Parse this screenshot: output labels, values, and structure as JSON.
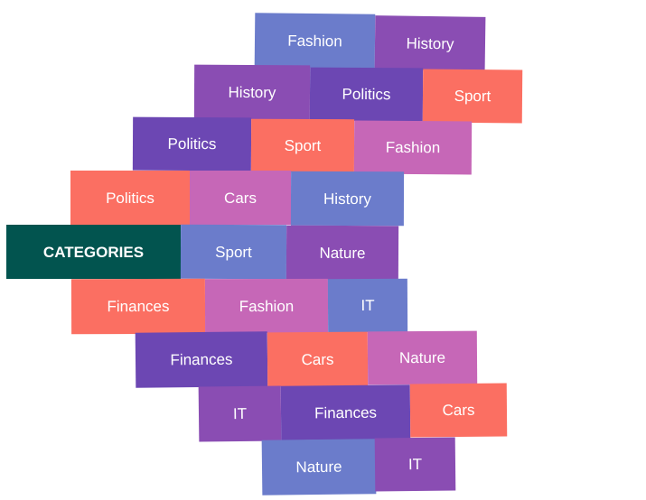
{
  "header": {
    "label": "CATEGORIES",
    "color": "#02544f"
  },
  "palette": {
    "blue": "#6b7ccb",
    "purple": "#8a4db3",
    "deep_purple": "#6c47b3",
    "coral": "#fb6f62",
    "pink": "#c667b7"
  },
  "rows": [
    {
      "tiles": [
        {
          "label": "Fashion",
          "color": "#6b7ccb"
        },
        {
          "label": "History",
          "color": "#8a4db3"
        }
      ]
    },
    {
      "tiles": [
        {
          "label": "History",
          "color": "#8a4db3"
        },
        {
          "label": "Politics",
          "color": "#6c47b3"
        },
        {
          "label": "Sport",
          "color": "#fb6f62"
        }
      ]
    },
    {
      "tiles": [
        {
          "label": "Politics",
          "color": "#6c47b3"
        },
        {
          "label": "Sport",
          "color": "#fb6f62"
        },
        {
          "label": "Fashion",
          "color": "#c667b7"
        }
      ]
    },
    {
      "tiles": [
        {
          "label": "Politics",
          "color": "#fb6f62"
        },
        {
          "label": "Cars",
          "color": "#c667b7"
        },
        {
          "label": "History",
          "color": "#6b7ccb"
        }
      ]
    },
    {
      "tiles": [
        {
          "label": "Sport",
          "color": "#6b7ccb"
        },
        {
          "label": "Nature",
          "color": "#8a4db3"
        }
      ]
    },
    {
      "tiles": [
        {
          "label": "Finances",
          "color": "#fb6f62"
        },
        {
          "label": "Fashion",
          "color": "#c667b7"
        },
        {
          "label": "IT",
          "color": "#6b7ccb"
        }
      ]
    },
    {
      "tiles": [
        {
          "label": "Finances",
          "color": "#6c47b3"
        },
        {
          "label": "Cars",
          "color": "#fb6f62"
        },
        {
          "label": "Nature",
          "color": "#c667b7"
        }
      ]
    },
    {
      "tiles": [
        {
          "label": "IT",
          "color": "#8a4db3"
        },
        {
          "label": "Finances",
          "color": "#6c47b3"
        },
        {
          "label": "Cars",
          "color": "#fb6f62"
        }
      ]
    },
    {
      "tiles": [
        {
          "label": "Nature",
          "color": "#6b7ccb"
        },
        {
          "label": "IT",
          "color": "#8a4db3"
        }
      ]
    }
  ]
}
